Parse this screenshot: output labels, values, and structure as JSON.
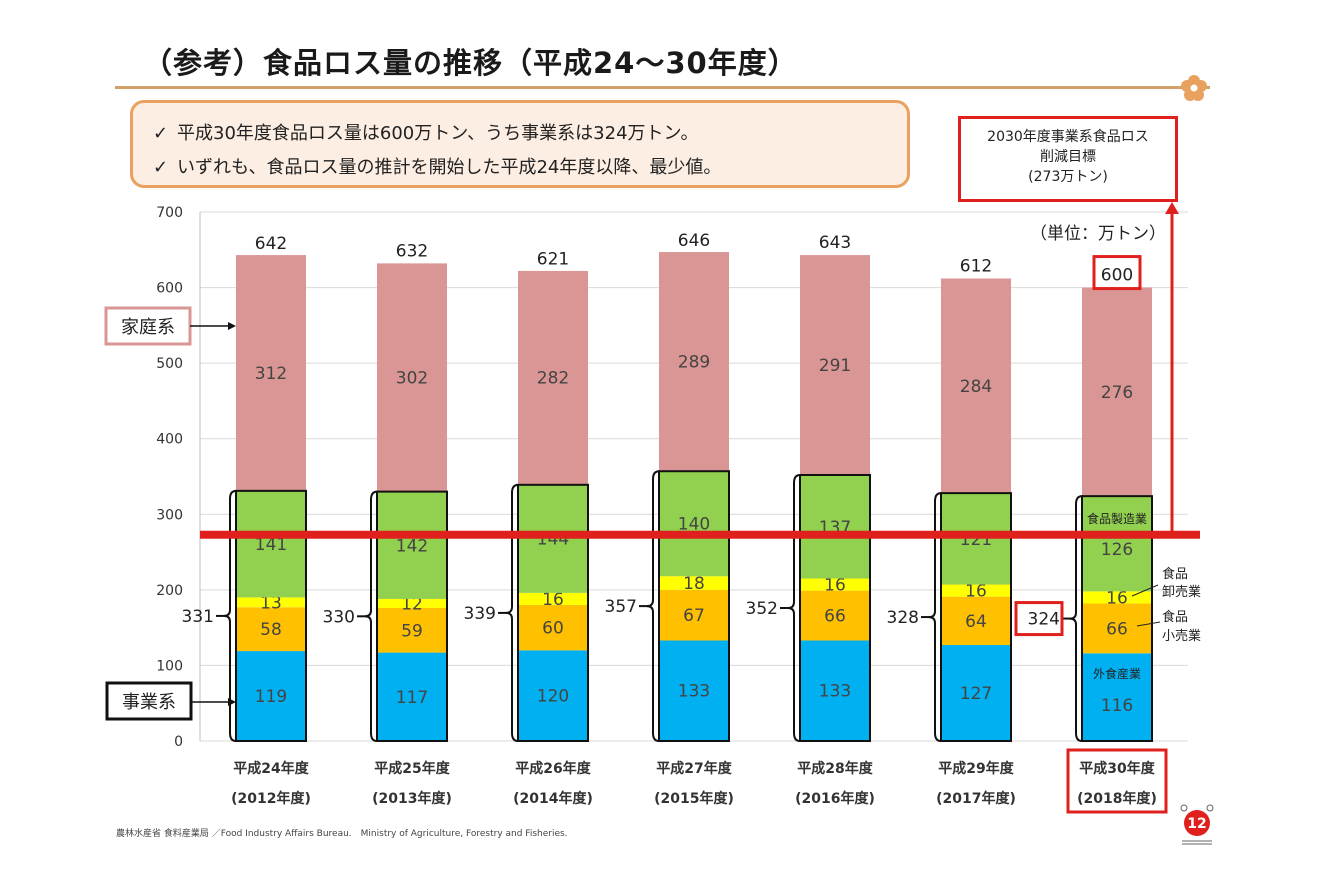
{
  "title": "（参考）食品ロス量の推移（平成24～30年度）",
  "notes": [
    "平成30年度食品ロス量は600万トン、うち事業系は324万トン。",
    "いずれも、食品ロス量の推計を開始した平成24年度以降、最少値。"
  ],
  "check_mark": "✓",
  "target": {
    "line1": "2030年度事業系食品ロス",
    "line2": "削減目標",
    "line3": "(273万トン)",
    "value": 273,
    "color": "#e0201c"
  },
  "unit_label": "（単位：万トン）",
  "category_labels": {
    "household": "家庭系",
    "business": "事業系",
    "manufacturing": "食品製造業",
    "wholesale_1": "食品",
    "wholesale_2": "卸売業",
    "retail_1": "食品",
    "retail_2": "小売業",
    "restaurant": "外食産業"
  },
  "footer": "農林水産省 食料産業局 ／Food Industry Affairs Bureau.　Ministry of Agriculture, Forestry and Fisheries.",
  "page_number": "12",
  "colors": {
    "household": "#d99694",
    "manufacturing": "#92d050",
    "wholesale": "#ffff00",
    "retail": "#ffc000",
    "restaurant": "#00b0f0",
    "target_line": "#e0201c",
    "accent": "#e8a15e"
  },
  "chart_data": {
    "type": "bar",
    "stacked": true,
    "ylim": [
      0,
      700
    ],
    "yticks": [
      0,
      100,
      200,
      300,
      400,
      500,
      600,
      700
    ],
    "grid": true,
    "categories": [
      {
        "line1": "平成24年度",
        "line2": "(2012年度)"
      },
      {
        "line1": "平成25年度",
        "line2": "(2013年度)"
      },
      {
        "line1": "平成26年度",
        "line2": "(2014年度)"
      },
      {
        "line1": "平成27年度",
        "line2": "(2015年度)"
      },
      {
        "line1": "平成28年度",
        "line2": "(2016年度)"
      },
      {
        "line1": "平成29年度",
        "line2": "(2017年度)"
      },
      {
        "line1": "平成30年度",
        "line2": "(2018年度)"
      }
    ],
    "series": [
      {
        "key": "restaurant",
        "values": [
          119,
          117,
          120,
          133,
          133,
          127,
          116
        ]
      },
      {
        "key": "retail",
        "values": [
          58,
          59,
          60,
          67,
          66,
          64,
          66
        ]
      },
      {
        "key": "wholesale",
        "values": [
          13,
          12,
          16,
          18,
          16,
          16,
          16
        ]
      },
      {
        "key": "manufacturing",
        "values": [
          141,
          142,
          144,
          140,
          137,
          121,
          126
        ]
      },
      {
        "key": "household",
        "values": [
          312,
          302,
          282,
          289,
          291,
          284,
          276
        ]
      }
    ],
    "business_totals": [
      331,
      330,
      339,
      357,
      352,
      328,
      324
    ],
    "totals": [
      642,
      632,
      621,
      646,
      643,
      612,
      600
    ],
    "target_line": 273
  }
}
